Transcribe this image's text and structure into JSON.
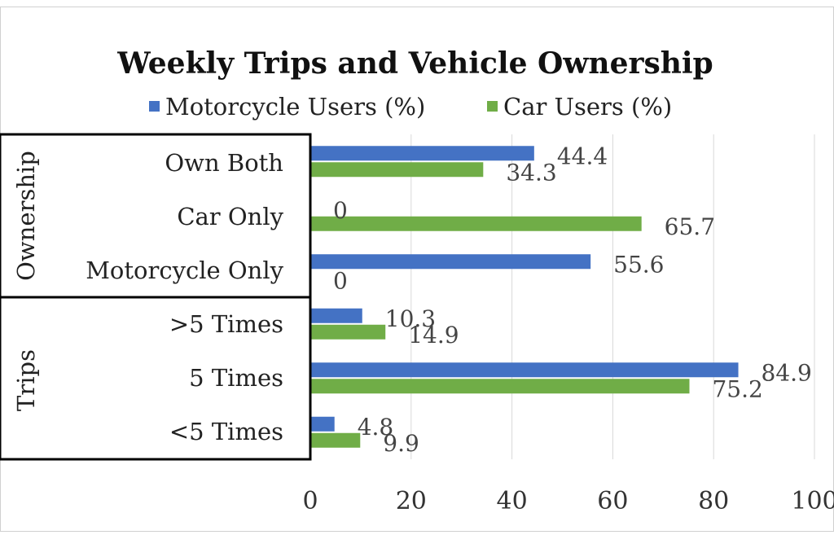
{
  "chart_data": {
    "type": "bar",
    "orientation": "horizontal",
    "title": "Weekly Trips and Vehicle Ownership",
    "xlabel": "",
    "ylabel": "",
    "xlim": [
      0,
      100
    ],
    "xticks": [
      "0",
      "20",
      "40",
      "60",
      "80",
      "100"
    ],
    "grid": true,
    "legend_position": "top",
    "groups": [
      {
        "label": "Ownership",
        "categories": [
          "Own Both",
          "Car Only",
          "Motorcycle Only"
        ]
      },
      {
        "label": "Trips",
        "categories": [
          ">5 Times",
          "5 Times",
          "<5 Times"
        ]
      }
    ],
    "categories": [
      "Own Both",
      "Car Only",
      "Motorcycle Only",
      ">5 Times",
      "5 Times",
      "<5 Times"
    ],
    "series": [
      {
        "name": "Motorcycle Users (%)",
        "color": "#4472C4",
        "values": [
          44.4,
          0,
          55.6,
          10.3,
          84.9,
          4.8
        ]
      },
      {
        "name": "Car Users (%)",
        "color": "#70AD47",
        "values": [
          34.3,
          65.7,
          0,
          14.9,
          75.2,
          9.9
        ]
      }
    ]
  }
}
